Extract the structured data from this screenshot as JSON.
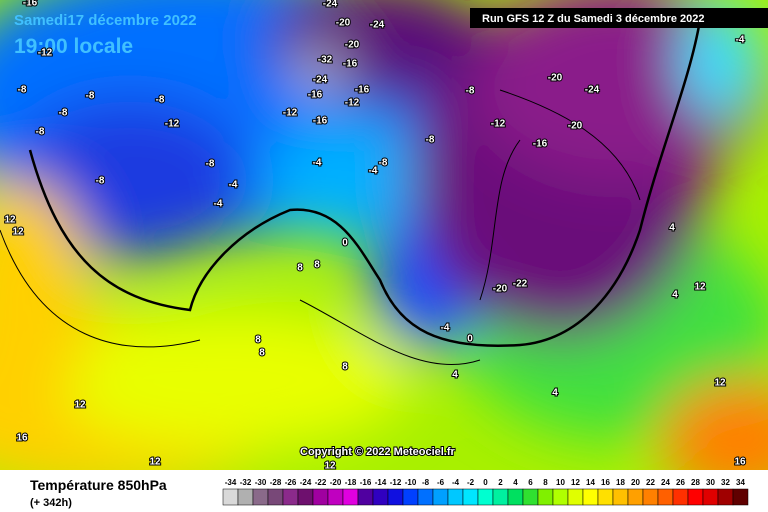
{
  "header": {
    "date": "Samedi17 décembre 2022",
    "time": "19:00 locale",
    "run_label": "Run GFS 12 Z du Samedi 3 décembre 2022"
  },
  "copyright": "Copyright © 2022 Meteociel.fr",
  "legend": {
    "title": "Température 850hPa",
    "subtitle": "(+ 342h)",
    "scale": [
      {
        "value": -34,
        "color": "#d9d9d9"
      },
      {
        "value": -32,
        "color": "#b0b0b0"
      },
      {
        "value": -30,
        "color": "#8a6a8a"
      },
      {
        "value": -28,
        "color": "#784878"
      },
      {
        "value": -26,
        "color": "#8b2a8b"
      },
      {
        "value": -24,
        "color": "#6e106e"
      },
      {
        "value": -22,
        "color": "#a000a0"
      },
      {
        "value": -20,
        "color": "#c000c0"
      },
      {
        "value": -18,
        "color": "#e000e0"
      },
      {
        "value": -16,
        "color": "#5000a0"
      },
      {
        "value": -14,
        "color": "#3000c0"
      },
      {
        "value": -12,
        "color": "#1010e0"
      },
      {
        "value": -10,
        "color": "#0040ff"
      },
      {
        "value": -8,
        "color": "#0070ff"
      },
      {
        "value": -6,
        "color": "#00a0ff"
      },
      {
        "value": -4,
        "color": "#00c8ff"
      },
      {
        "value": -2,
        "color": "#00e6ff"
      },
      {
        "value": 0,
        "color": "#00ffd0"
      },
      {
        "value": 2,
        "color": "#00f0a0"
      },
      {
        "value": 4,
        "color": "#00e060"
      },
      {
        "value": 6,
        "color": "#30e030"
      },
      {
        "value": 8,
        "color": "#80f000"
      },
      {
        "value": 10,
        "color": "#b0ff00"
      },
      {
        "value": 12,
        "color": "#e0ff00"
      },
      {
        "value": 14,
        "color": "#ffff00"
      },
      {
        "value": 16,
        "color": "#ffe000"
      },
      {
        "value": 18,
        "color": "#ffc000"
      },
      {
        "value": 20,
        "color": "#ffa000"
      },
      {
        "value": 22,
        "color": "#ff8000"
      },
      {
        "value": 24,
        "color": "#ff6000"
      },
      {
        "value": 26,
        "color": "#ff3000"
      },
      {
        "value": 28,
        "color": "#ff0000"
      },
      {
        "value": 30,
        "color": "#e00000"
      },
      {
        "value": 32,
        "color": "#a00000"
      },
      {
        "value": 34,
        "color": "#600000"
      }
    ]
  },
  "map": {
    "labels": [
      "-16",
      "-24",
      "-20",
      "-24",
      "-12",
      "-8",
      "-8",
      "-8",
      "-8",
      "-12",
      "-8",
      "-32",
      "-16",
      "-24",
      "-20",
      "-16",
      "-16",
      "-12",
      "-12",
      "-16",
      "-8",
      "-20",
      "-24",
      "-20",
      "-16",
      "-12",
      "-8",
      "-8",
      "-4",
      "-4",
      "-4",
      "-4",
      "-8",
      "-8",
      "12",
      "12",
      "8",
      "8",
      "0",
      "-20",
      "-22",
      "-4",
      "0",
      "8",
      "8",
      "4",
      "4",
      "8",
      "12",
      "16",
      "12",
      "12",
      "16",
      "12",
      "4",
      "12",
      "-4",
      "4"
    ]
  }
}
